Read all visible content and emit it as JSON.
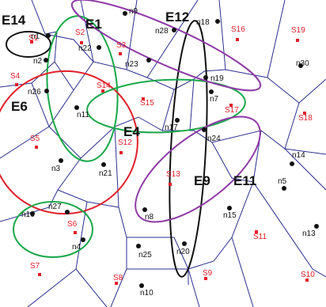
{
  "colors": {
    "voronoi": "#2c2f8f",
    "node": "#111111",
    "site": "#e0202a",
    "green": "#1aa84a",
    "purple": "#8e3aa6",
    "red": "#e0202a",
    "black": "#111111"
  },
  "hyperedges": [
    {
      "id": "E14",
      "label": "E14",
      "color": "black"
    },
    {
      "id": "E1",
      "label": "E1",
      "color": "green"
    },
    {
      "id": "E12",
      "label": "E12",
      "color": "black"
    },
    {
      "id": "E6",
      "label": "E6",
      "color": "red"
    },
    {
      "id": "E4",
      "label": "E4",
      "color": "green"
    },
    {
      "id": "E9",
      "label": "E9",
      "color": "black"
    },
    {
      "id": "E11",
      "label": "E11",
      "color": "purple"
    },
    {
      "id": "E_purple_top",
      "label": "",
      "color": "purple"
    },
    {
      "id": "E_green_bottom",
      "label": "",
      "color": "green"
    }
  ],
  "nodes": [
    "n1",
    "n2",
    "n3",
    "n4",
    "n5",
    "n7",
    "n8",
    "n9",
    "n10",
    "n11",
    "n13",
    "n14",
    "n15",
    "n16",
    "n17",
    "n18",
    "n19",
    "n20",
    "n21",
    "n22",
    "n23",
    "n24",
    "n25",
    "n26",
    "n27",
    "n28",
    "n30"
  ],
  "sites": [
    "S1",
    "S2",
    "S3",
    "S4",
    "S5",
    "S6",
    "S7",
    "S8",
    "S9",
    "S10",
    "S11",
    "S12",
    "S13",
    "S14",
    "S15",
    "S16",
    "S17",
    "S18",
    "S19"
  ]
}
